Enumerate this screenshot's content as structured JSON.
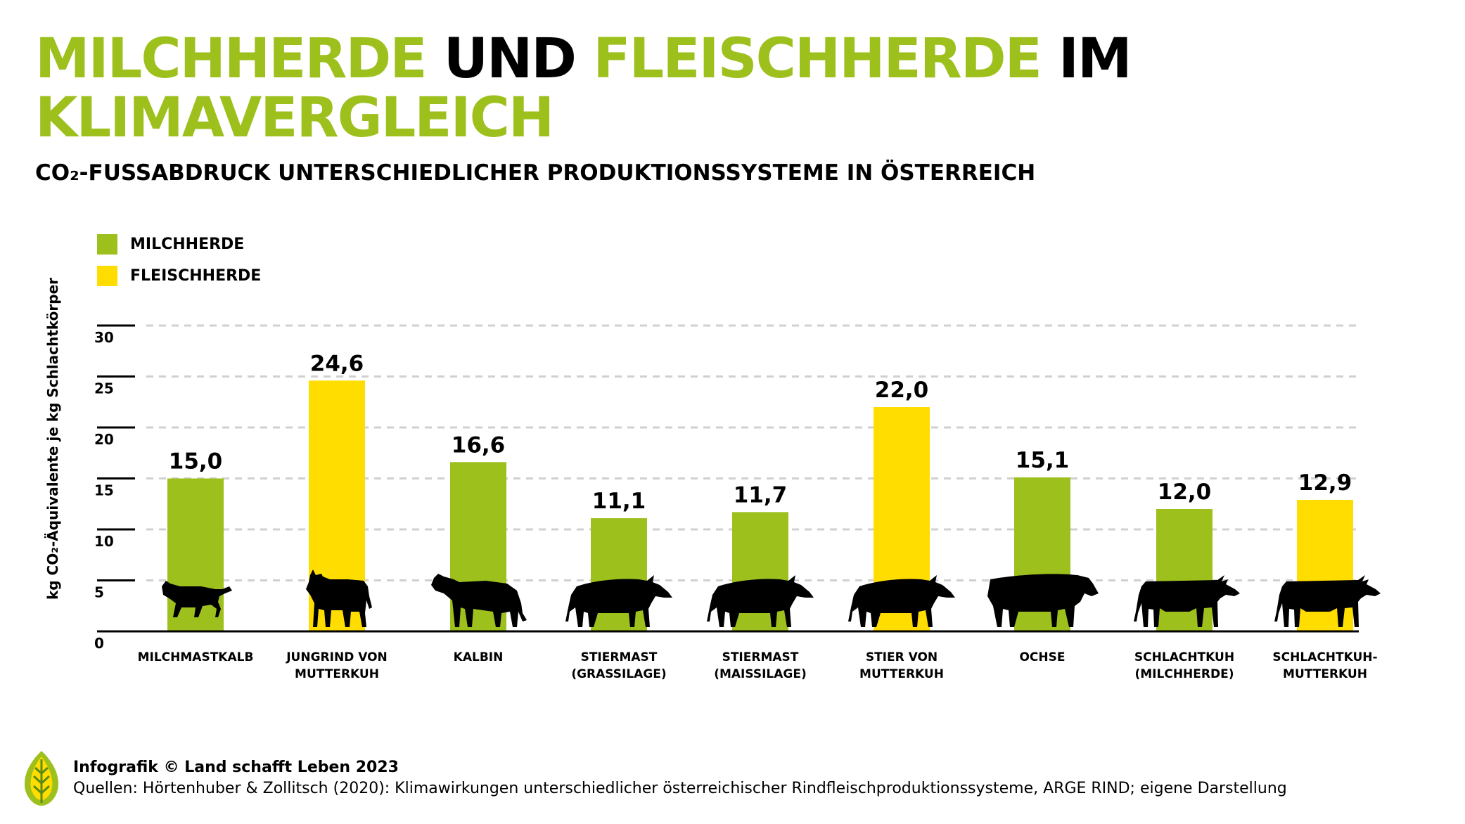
{
  "header": {
    "title_part1": "MILCHHERDE",
    "title_part2": "UND",
    "title_part3": "FLEISCHHERDE",
    "title_part4": "IM",
    "title_part5": "KLIMAVERGLEICH",
    "subtitle": "CO₂-FUSSABDRUCK UNTERSCHIEDLICHER PRODUKTIONSSYSTEME IN ÖSTERREICH"
  },
  "legend": [
    {
      "label": "MILCHHERDE",
      "color": "#9dc01d"
    },
    {
      "label": "FLEISCHHERDE",
      "color": "#ffdd00"
    }
  ],
  "chart_data": {
    "type": "bar",
    "title": "",
    "xlabel": "",
    "ylabel": "kg CO₂-Äquivalente je kg Schlachtkörper",
    "ylim": [
      0,
      30
    ],
    "yticks": [
      0,
      5,
      10,
      15,
      20,
      25,
      30
    ],
    "grid": true,
    "legend_position": "top-left",
    "categories": [
      {
        "line1": "MILCHMASTKALB",
        "line2": ""
      },
      {
        "line1": "JUNGRIND VON",
        "line2": "MUTTERKUH"
      },
      {
        "line1": "KALBIN",
        "line2": ""
      },
      {
        "line1": "STIERMAST",
        "line2": "(GRASSILAGE)"
      },
      {
        "line1": "STIERMAST",
        "line2": "(MAISSILAGE)"
      },
      {
        "line1": "STIER VON",
        "line2": "MUTTERKUH"
      },
      {
        "line1": "OCHSE",
        "line2": ""
      },
      {
        "line1": "SCHLACHTKUH",
        "line2": "(MILCHHERDE)"
      },
      {
        "line1": "SCHLACHTKUH-",
        "line2": "MUTTERKUH"
      }
    ],
    "values": [
      15.0,
      24.6,
      16.6,
      11.1,
      11.7,
      22.0,
      15.1,
      12.0,
      12.9
    ],
    "value_labels": [
      "15,0",
      "24,6",
      "16,6",
      "11,1",
      "11,7",
      "22,0",
      "15,1",
      "12,0",
      "12,9"
    ],
    "herd": [
      "MILCHHERDE",
      "FLEISCHHERDE",
      "MILCHHERDE",
      "MILCHHERDE",
      "MILCHHERDE",
      "FLEISCHHERDE",
      "MILCHHERDE",
      "MILCHHERDE",
      "FLEISCHHERDE"
    ],
    "icons": [
      "calf-icon",
      "young-cattle-icon",
      "heifer-icon",
      "bull-icon",
      "bull-icon",
      "bull-icon",
      "ox-icon",
      "cow-icon",
      "cow-icon"
    ],
    "colors": {
      "MILCHHERDE": "#9dc01d",
      "FLEISCHHERDE": "#ffdd00",
      "grid": "#d0d0d0",
      "axis": "#000000"
    }
  },
  "footer": {
    "credit": "Infografik © Land schafft Leben 2023",
    "sources": "Quellen: Hörtenhuber & Zollitsch (2020): Klimawirkungen unterschiedlicher österreichischer Rindfleischproduktionssysteme, ARGE RIND; eigene Darstellung",
    "logo_icon": "leaf-logo-icon"
  }
}
